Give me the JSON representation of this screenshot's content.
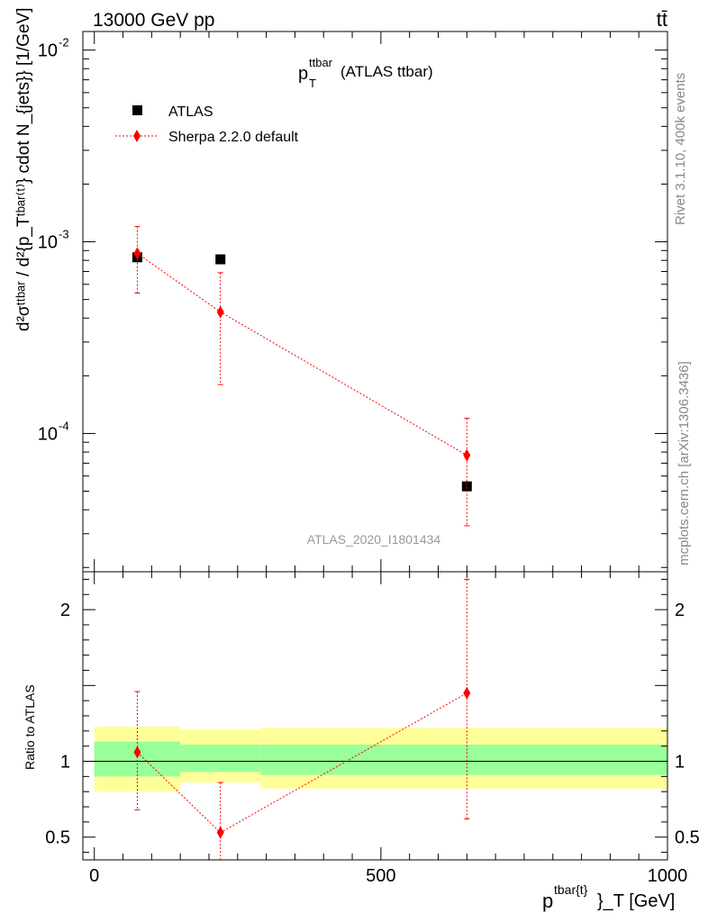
{
  "header": {
    "left": "13000 GeV pp",
    "right": "tt̄",
    "plot_title_main": "p",
    "plot_title_sup": "ttbar",
    "plot_title_sub": "T",
    "plot_title_rest": " (ATLAS ttbar)"
  },
  "side": {
    "rivet": "Rivet 3.1.10,  400k events",
    "mcplots": "mcplots.cern.ch [arXiv:1306.3436]"
  },
  "watermark": "ATLAS_2020_I1801434",
  "axes": {
    "ylabel_top": "d²σᵗᵗᵇᵃʳ / d²{p_Tᵗᵇᵃʳ⁽ᵗ⁾} cdot N_{jets}} [1/GeV]",
    "ylabel_bottom": "Ratio to ATLAS",
    "xlabel_main": "p",
    "xlabel_sup": "tbar{t}",
    "xlabel_rest": "}_T [GeV]"
  },
  "legend": {
    "position": "top-left",
    "entries": [
      "ATLAS",
      "Sherpa 2.2.0 default"
    ]
  },
  "colors": {
    "data": "#000000",
    "mc": "#ff0000",
    "band_inner": "#99ff99",
    "band_outer": "#ffff99"
  },
  "chart_data": [
    {
      "type": "scatter",
      "panel": "main",
      "yscale": "log",
      "xlim": [
        -20,
        1000
      ],
      "ylim": [
        1.9e-05,
        0.0125
      ],
      "yticks": [
        0.0001,
        0.001,
        0.01
      ],
      "ytick_labels": [
        "10",
        "10",
        "10"
      ],
      "ytick_exps": [
        "-4",
        "-3",
        "-2"
      ],
      "series": [
        {
          "name": "ATLAS",
          "x": [
            75,
            220,
            650
          ],
          "y": [
            0.00083,
            0.00081,
            5.3e-05
          ],
          "bins": [
            [
              0,
              150
            ],
            [
              150,
              290
            ],
            [
              290,
              1000
            ]
          ]
        },
        {
          "name": "Sherpa 2.2.0 default",
          "x": [
            75,
            220,
            650
          ],
          "y": [
            0.00087,
            0.00043,
            7.7e-05
          ],
          "yerr_low": [
            0.00054,
            0.00018,
            3.3e-05
          ],
          "yerr_high": [
            0.0012,
            0.00069,
            0.00012
          ]
        }
      ]
    },
    {
      "type": "line",
      "panel": "ratio",
      "xlim": [
        -20,
        1000
      ],
      "ylim": [
        0.35,
        2.25
      ],
      "yticks": [
        0.5,
        1,
        2
      ],
      "ytick_labels": [
        "0.5",
        "1",
        "2"
      ],
      "xticks": [
        0,
        500,
        1000
      ],
      "xtick_labels": [
        "0",
        "500",
        "1000"
      ],
      "reference": 1,
      "bands": [
        {
          "x0": 0,
          "x1": 150,
          "inner": [
            0.9,
            1.13
          ],
          "outer": [
            0.8,
            1.23
          ]
        },
        {
          "x0": 150,
          "x1": 290,
          "inner": [
            0.93,
            1.11
          ],
          "outer": [
            0.86,
            1.21
          ]
        },
        {
          "x0": 290,
          "x1": 1000,
          "inner": [
            0.91,
            1.11
          ],
          "outer": [
            0.82,
            1.22
          ]
        }
      ],
      "series": [
        {
          "name": "Sherpa 2.2.0 default",
          "x": [
            75,
            220,
            650
          ],
          "y": [
            1.06,
            0.53,
            1.45
          ],
          "yerr_low": [
            0.68,
            0.21,
            0.62
          ],
          "yerr_high": [
            1.46,
            0.86,
            2.2
          ]
        }
      ]
    }
  ]
}
